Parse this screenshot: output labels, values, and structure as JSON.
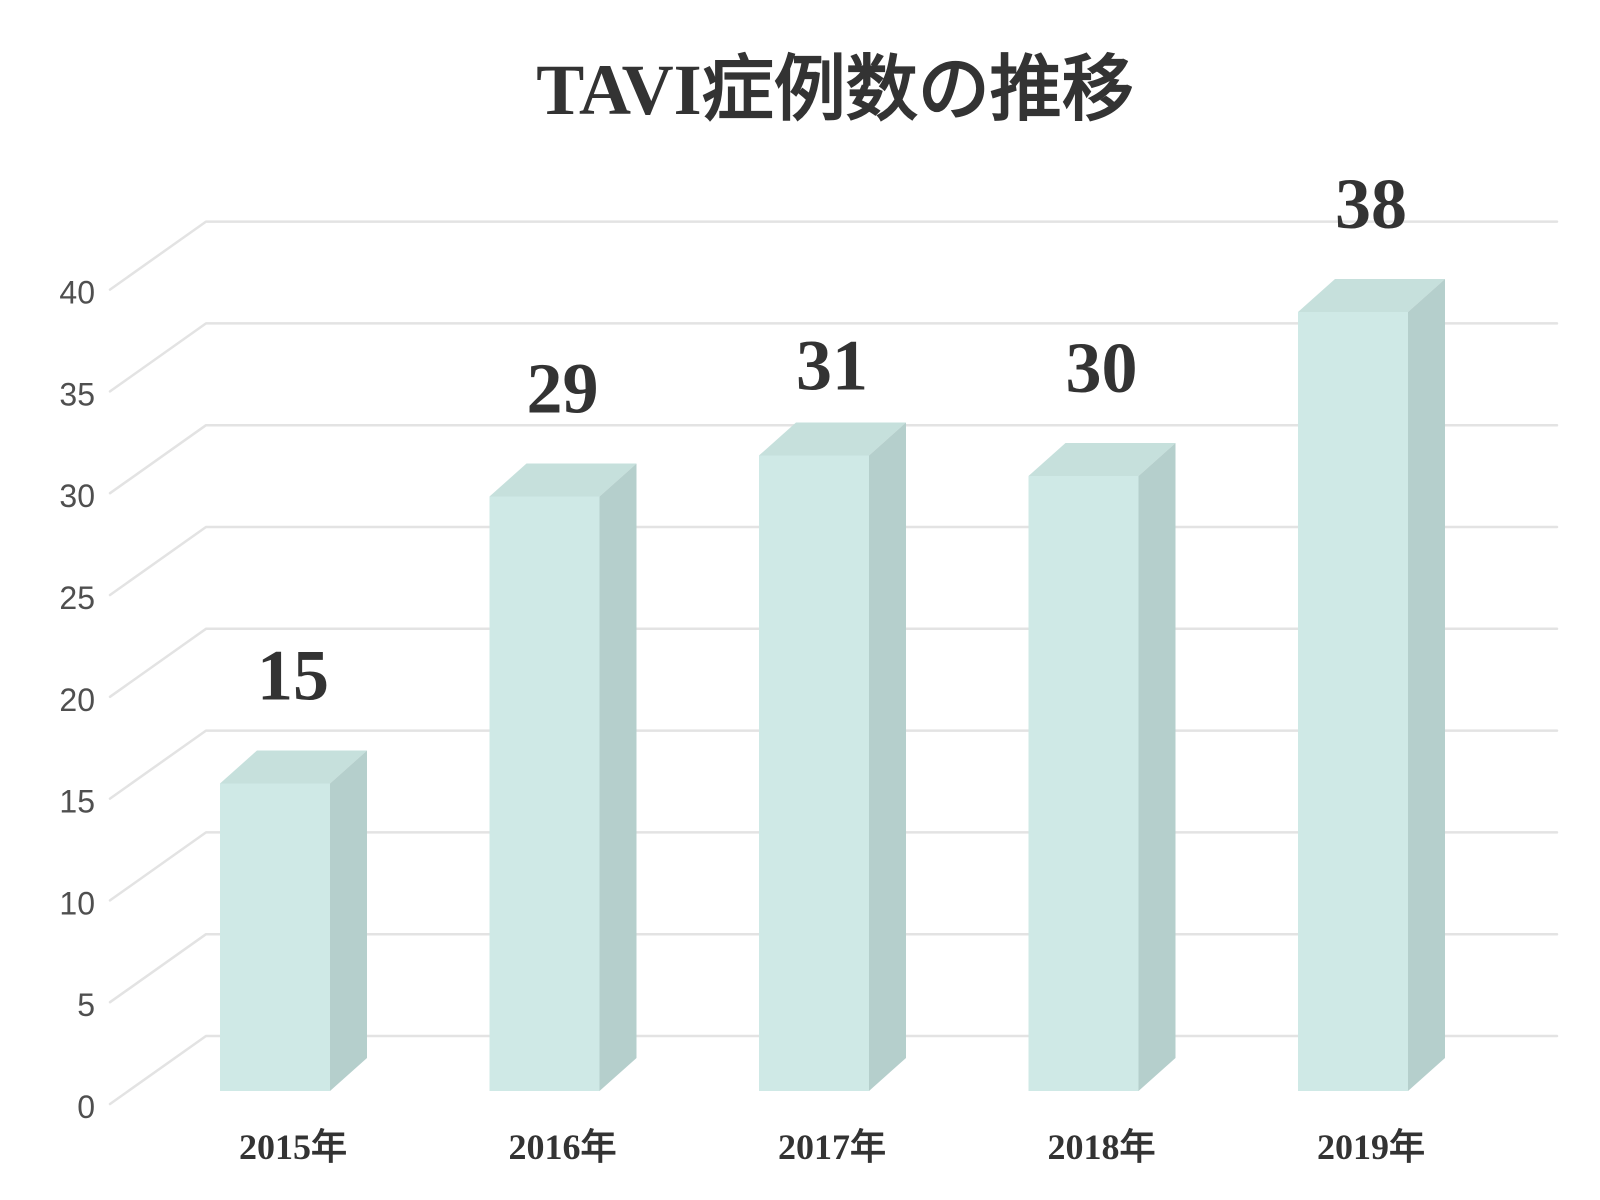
{
  "title": "TAVI症例数の推移",
  "chart_data": {
    "type": "bar",
    "variant": "3d-column",
    "title": "TAVI症例数の推移",
    "categories": [
      "2015年",
      "2016年",
      "2017年",
      "2018年",
      "2019年"
    ],
    "values": [
      15,
      29,
      31,
      30,
      38
    ],
    "data_labels": [
      "15",
      "29",
      "31",
      "30",
      "38"
    ],
    "xlabel": "",
    "ylabel": "",
    "ylim": [
      0,
      40
    ],
    "ytick_step": 5,
    "yticks": [
      0,
      5,
      10,
      15,
      20,
      25,
      30,
      35,
      40
    ],
    "grid": true,
    "legend": false,
    "label_dy": [
      0,
      0,
      18,
      0,
      0
    ],
    "colors": {
      "bar_front": "#cfe9e6",
      "bar_top": "#c6e0dc",
      "bar_side": "#b5cfcc",
      "gridline": "#e3e3e3",
      "ytick_text": "#4f4f4f",
      "text": "#333333",
      "background": "#ffffff"
    }
  }
}
